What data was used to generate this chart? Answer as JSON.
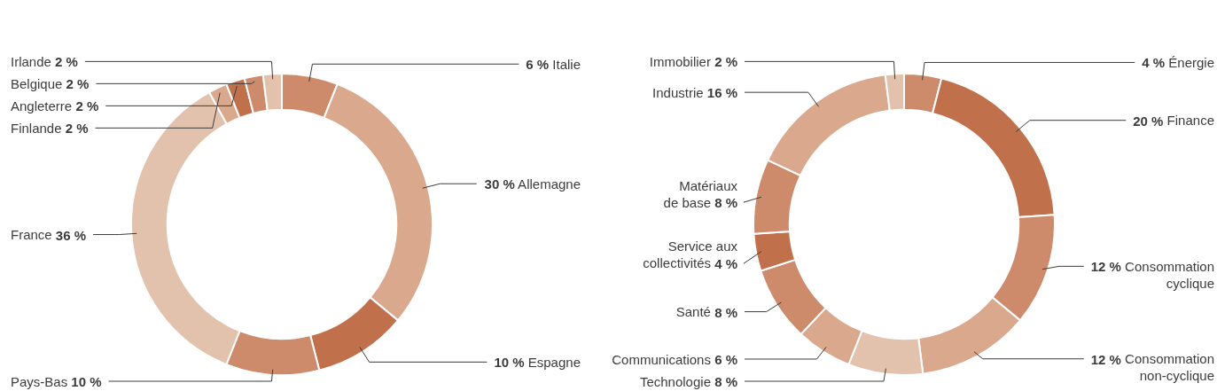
{
  "chart_data": [
    {
      "type": "donut",
      "categories": [
        "Italie",
        "Allemagne",
        "Espagne",
        "Pays-Bas",
        "France",
        "Finlande",
        "Angleterre",
        "Belgique",
        "Irlande"
      ],
      "values": [
        6,
        30,
        10,
        10,
        36,
        2,
        2,
        2,
        2
      ],
      "value_labels": [
        "6 %",
        "30 %",
        "10 %",
        "10 %",
        "36 %",
        "2 %",
        "2 %",
        "2 %",
        "2 %"
      ],
      "colors": [
        "#cd8b6c",
        "#d9a88d",
        "#c0714c",
        "#cd8b6c",
        "#e3c2ad",
        "#d9a88d",
        "#c0714c",
        "#cd8b6c",
        "#e3c2ad"
      ]
    },
    {
      "type": "donut",
      "categories": [
        "Énergie",
        "Finance",
        "Consommation\ncyclique",
        "Consommation\nnon-cyclique",
        "Technologie",
        "Communications",
        "Santé",
        "Service aux\ncollectivités",
        "Matériaux\nde base",
        "Industrie",
        "Immobilier"
      ],
      "values": [
        4,
        20,
        12,
        12,
        8,
        6,
        8,
        4,
        8,
        16,
        2
      ],
      "value_labels": [
        "4 %",
        "20 %",
        "12 %",
        "12 %",
        "8 %",
        "6 %",
        "8 %",
        "4 %",
        "8 %",
        "16 %",
        "2 %"
      ],
      "colors": [
        "#cd8b6c",
        "#c0714c",
        "#cd8b6c",
        "#d9a88d",
        "#e3c2ad",
        "#d9a88d",
        "#cd8b6c",
        "#c0714c",
        "#cd8b6c",
        "#d9a88d",
        "#e3c2ad"
      ]
    }
  ]
}
